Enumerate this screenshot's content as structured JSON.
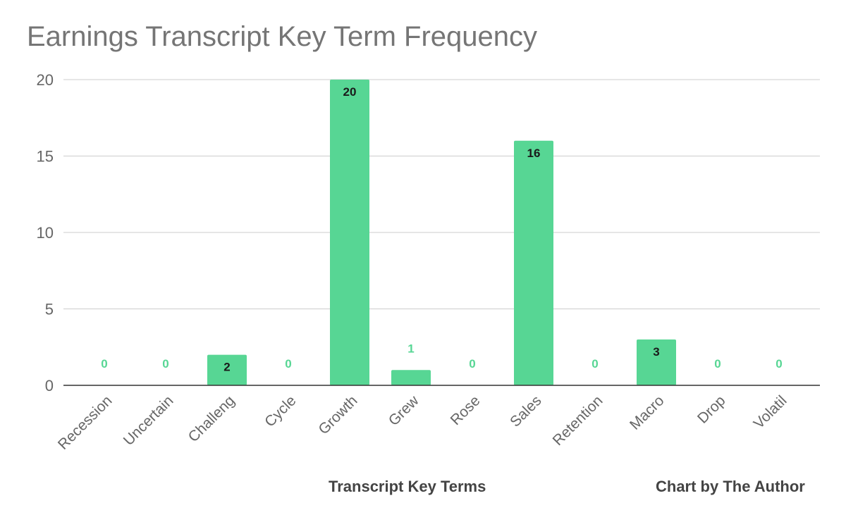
{
  "chart_data": {
    "type": "bar",
    "title": "Earnings Transcript Key Term Frequency",
    "xlabel": "Transcript Key Terms",
    "ylabel": "",
    "credit": "Chart by The Author",
    "categories": [
      "Recession",
      "Uncertain",
      "Challeng",
      "Cycle",
      "Growth",
      "Grew",
      "Rose",
      "Sales",
      "Retention",
      "Macro",
      "Drop",
      "Volatil"
    ],
    "values": [
      0,
      0,
      2,
      0,
      20,
      1,
      0,
      16,
      0,
      3,
      0,
      0
    ],
    "ylim": [
      0,
      20
    ],
    "yticks": [
      0,
      5,
      10,
      15,
      20
    ],
    "grid": true,
    "bar_color": "#57d694",
    "inside_label_color": "#1a1a1a",
    "outside_label_color": "#57d694"
  }
}
